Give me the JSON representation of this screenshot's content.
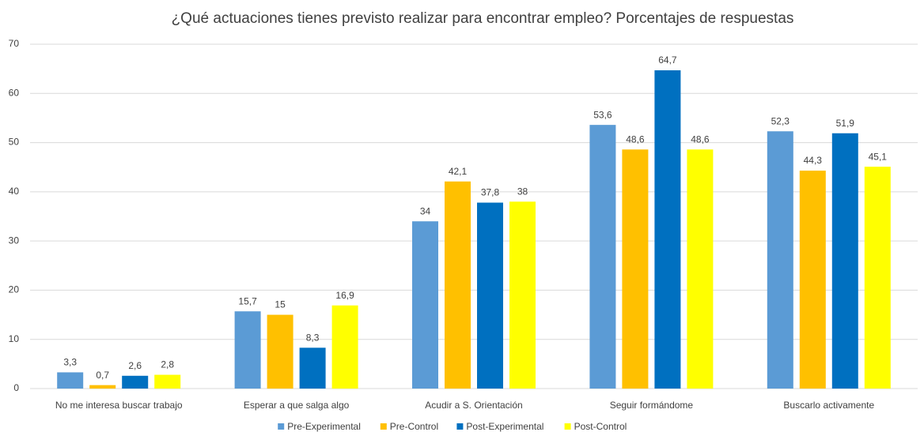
{
  "chart_data": {
    "type": "bar",
    "title": "¿Qué actuaciones tienes previsto realizar para encontrar empleo? Porcentajes de respuestas",
    "categories": [
      "No me interesa buscar trabajo",
      "Esperar a que salga algo",
      "Acudir a S. Orientación",
      "Seguir formándome",
      "Buscarlo activamente"
    ],
    "series": [
      {
        "name": "Pre-Experimental",
        "color": "#5b9bd5",
        "values": [
          3.3,
          15.7,
          34,
          53.6,
          52.3
        ],
        "value_labels": [
          "3,3",
          "15,7",
          "34",
          "53,6",
          "52,3"
        ]
      },
      {
        "name": "Pre-Control",
        "color": "#ffc000",
        "values": [
          0.7,
          15,
          42.1,
          48.6,
          44.3
        ],
        "value_labels": [
          "0,7",
          "15",
          "42,1",
          "48,6",
          "44,3"
        ]
      },
      {
        "name": "Post-Experimental",
        "color": "#0070c0",
        "values": [
          2.6,
          8.3,
          37.8,
          64.7,
          51.9
        ],
        "value_labels": [
          "2,6",
          "8,3",
          "37,8",
          "64,7",
          "51,9"
        ]
      },
      {
        "name": "Post-Control",
        "color": "#ffff00",
        "values": [
          2.8,
          16.9,
          38,
          48.6,
          45.1
        ],
        "value_labels": [
          "2,8",
          "16,9",
          "38",
          "48,6",
          "45,1"
        ]
      }
    ],
    "ylim": [
      0,
      70
    ],
    "yticks": [
      0,
      10,
      20,
      30,
      40,
      50,
      60,
      70
    ],
    "grid": true,
    "legend": "bottom"
  }
}
